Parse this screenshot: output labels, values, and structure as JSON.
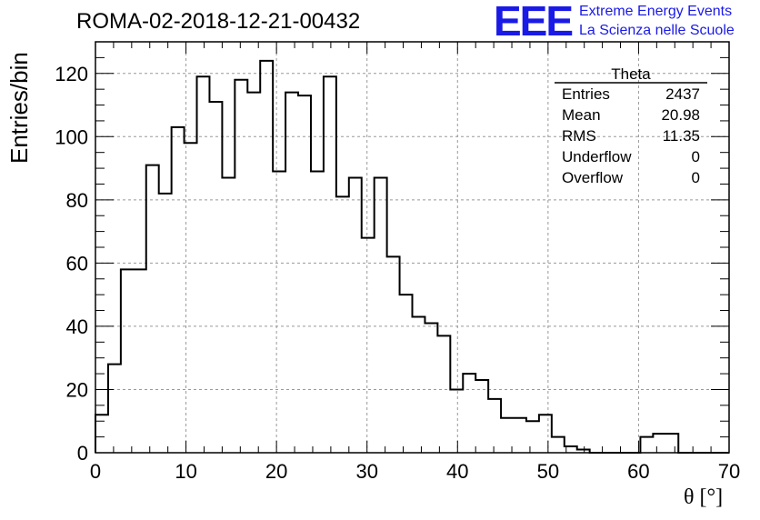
{
  "header": {
    "title": "ROMA-02-2018-12-21-00432",
    "logo_text": "EEE",
    "logo_line1": "Extreme Energy Events",
    "logo_line2": "La Scienza nelle Scuole",
    "logo_color": "#1a1ae6"
  },
  "stats": {
    "title": "Theta",
    "rows": [
      {
        "label": "Entries",
        "value": "2437"
      },
      {
        "label": "Mean",
        "value": "20.98"
      },
      {
        "label": "RMS",
        "value": "11.35"
      },
      {
        "label": "Underflow",
        "value": "0"
      },
      {
        "label": "Overflow",
        "value": "0"
      }
    ]
  },
  "chart_data": {
    "type": "bar",
    "style": "step-histogram",
    "xlabel": "θ [°]",
    "ylabel": "Entries/bin",
    "xlim": [
      0,
      70
    ],
    "ylim": [
      0,
      130
    ],
    "bin_width": 1.4,
    "bin_edges_start": 0,
    "values": [
      12,
      28,
      58,
      58,
      91,
      82,
      103,
      98,
      119,
      111,
      87,
      118,
      114,
      124,
      89,
      114,
      113,
      89,
      119,
      81,
      87,
      68,
      87,
      62,
      50,
      43,
      41,
      37,
      20,
      25,
      23,
      17,
      11,
      11,
      10,
      12,
      5,
      2,
      1,
      0,
      0,
      0,
      0,
      5,
      6,
      6,
      0,
      0,
      0,
      0
    ],
    "x_ticks": [
      "0",
      "10",
      "20",
      "30",
      "40",
      "50",
      "60",
      "70"
    ],
    "y_ticks": [
      "0",
      "20",
      "40",
      "60",
      "80",
      "100",
      "120"
    ],
    "grid": true
  }
}
